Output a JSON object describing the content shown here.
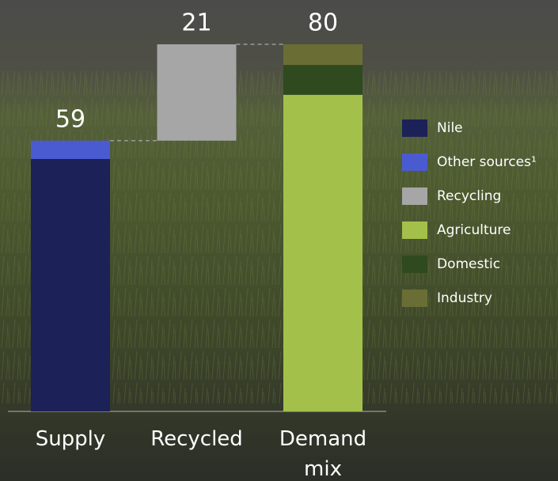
{
  "chart_data": {
    "type": "waterfall",
    "categories": [
      "Supply",
      "Recycled",
      "Demand mix"
    ],
    "totals": [
      59,
      21,
      80
    ],
    "series": [
      {
        "name": "Nile",
        "color": "#1c2157",
        "values": [
          55,
          null,
          null
        ]
      },
      {
        "name": "Other sources¹",
        "color": "#4a5bd1",
        "values": [
          4,
          null,
          null
        ]
      },
      {
        "name": "Recycling",
        "color": "#a6a6a6",
        "values": [
          null,
          21,
          null
        ]
      },
      {
        "name": "Agriculture",
        "color": "#a3c14a",
        "values": [
          null,
          null,
          69
        ]
      },
      {
        "name": "Domestic",
        "color": "#2e4a1e",
        "values": [
          null,
          null,
          6.5
        ]
      },
      {
        "name": "Industry",
        "color": "#6b6e34",
        "values": [
          null,
          null,
          4.5
        ]
      }
    ],
    "ylim": [
      0,
      80
    ]
  }
}
